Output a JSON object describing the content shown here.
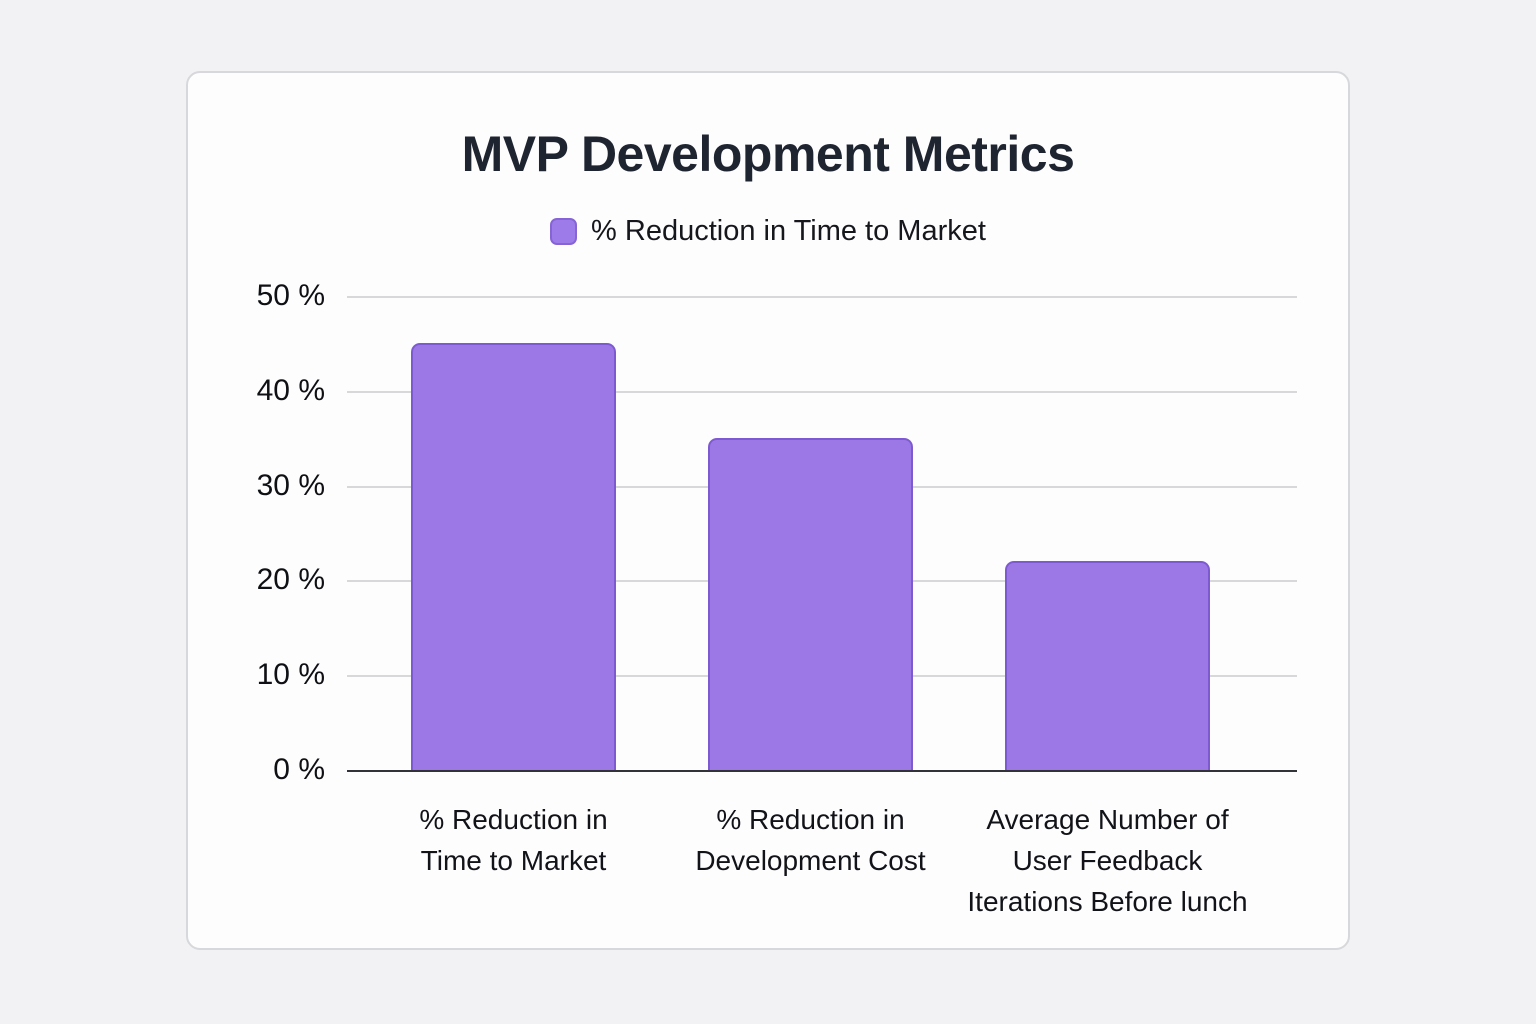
{
  "chart_data": {
    "type": "bar",
    "title": "MVP Development Metrics",
    "legend": [
      {
        "label": "% Reduction in Time to Market",
        "color": "#9d7ce9",
        "border_color": "#8664d6"
      }
    ],
    "categories": [
      "% Reduction in\nTime to Market",
      "% Reduction in\nDevelopment Cost",
      "Average Number of\nUser Feedback\nIterations Before lunch"
    ],
    "values": [
      45,
      35,
      22
    ],
    "value_unit": "%",
    "xlabel": "",
    "ylabel": "",
    "ylim": [
      0,
      50
    ],
    "yticks": [
      0,
      10,
      20,
      30,
      40,
      50
    ],
    "ytick_labels": [
      "0 %",
      "10 %",
      "20 %",
      "30 %",
      "40 %",
      "50 %"
    ],
    "grid": true,
    "legend_position": "top",
    "bar_color": "#9b78e6",
    "bar_border_color": "#7e5ad0"
  }
}
